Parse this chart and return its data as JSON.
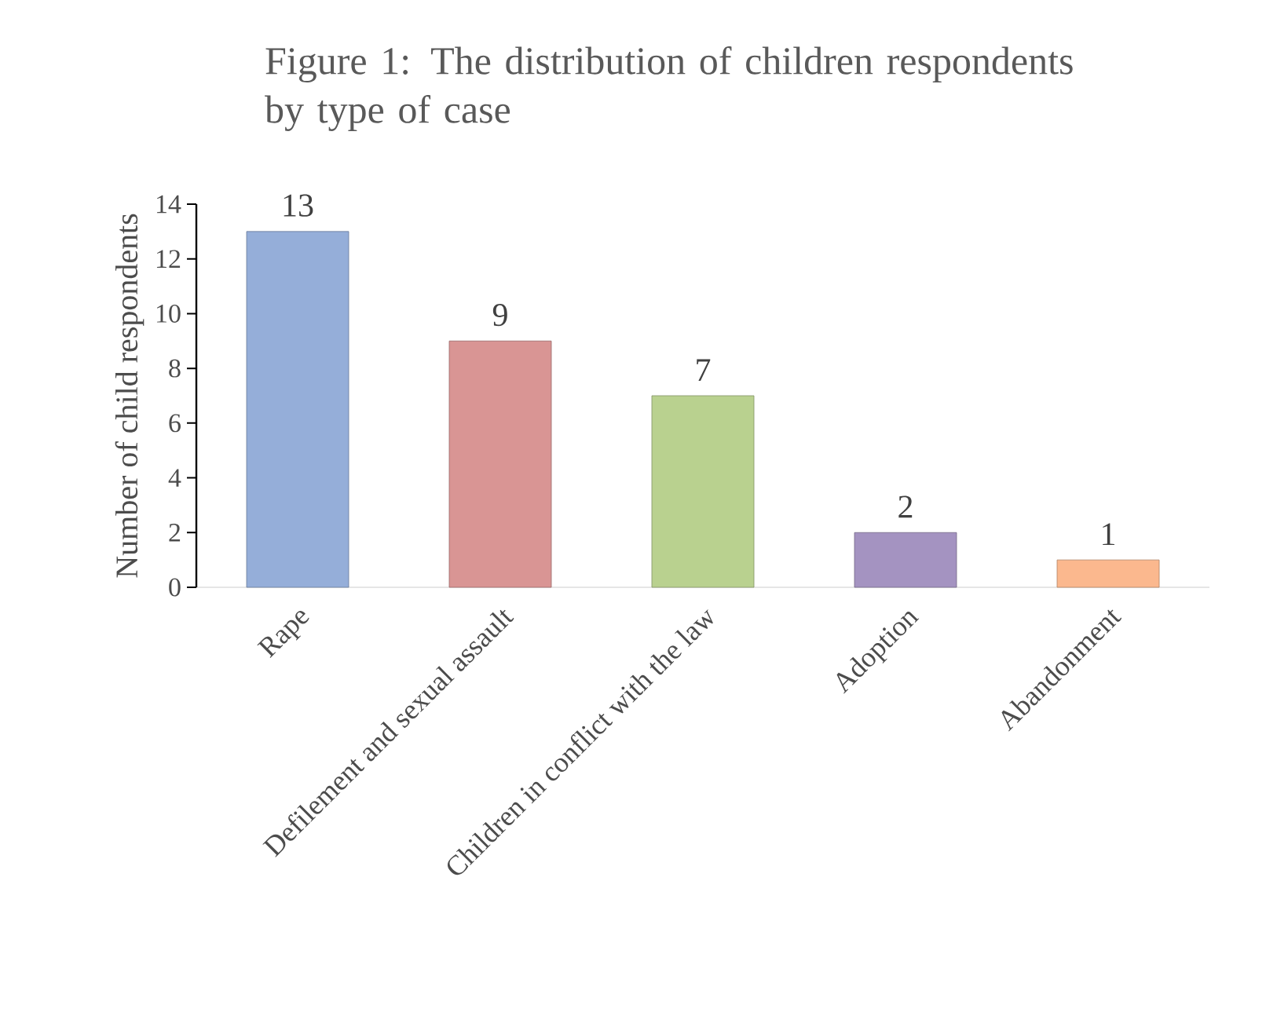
{
  "chart_data": {
    "type": "bar",
    "title": "Figure 1: The distribution of children respondents by type of case",
    "ylabel": "Number of child respondents",
    "categories": [
      "Rape",
      "Defilement and sexual assault",
      "Children in conflict with the law",
      "Adoption",
      "Abandonment"
    ],
    "values": [
      13,
      9,
      7,
      2,
      1
    ],
    "colors": [
      "#95aed9",
      "#d99594",
      "#b9d18f",
      "#a493c1",
      "#fbb88e"
    ],
    "ylim": [
      0,
      14
    ],
    "yticks": [
      0,
      2,
      4,
      6,
      8,
      10,
      12,
      14
    ],
    "data_labels": true
  }
}
